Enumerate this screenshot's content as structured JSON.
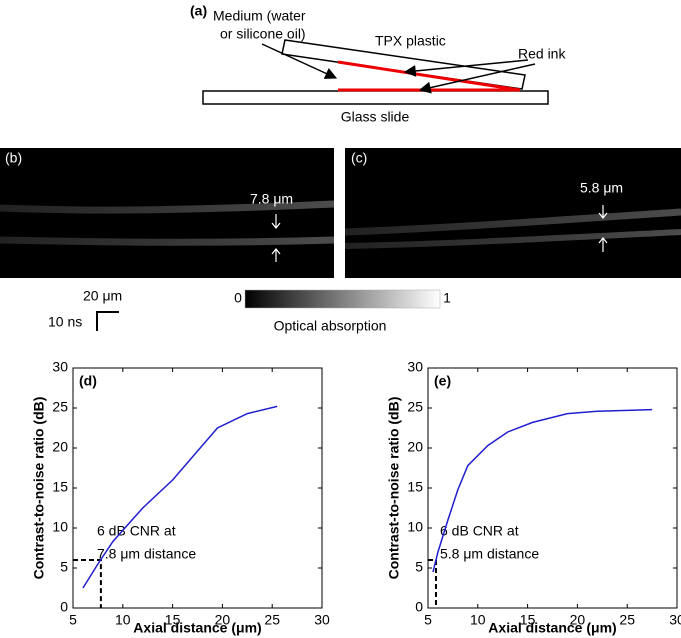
{
  "diagram": {
    "label": "(a)",
    "medium": [
      "Medium (water",
      "or silicone oil)"
    ],
    "plastic": "TPX plastic",
    "ink": "Red ink",
    "slide": "Glass slide"
  },
  "images": [
    {
      "label": "(b)",
      "annotation": "7.8 μm"
    },
    {
      "label": "(c)",
      "annotation": "5.8 μm"
    }
  ],
  "scale_bar": {
    "horizontal": "20 μm",
    "vertical": "10 ns"
  },
  "colorbar": {
    "label": "Optical absorption",
    "ticks": [
      0,
      1
    ]
  },
  "chart_data": [
    {
      "type": "line",
      "panel": "(d)",
      "xlabel": "Axial distance (μm)",
      "ylabel": "Contrast-to-noise ratio (dB)",
      "xlim": [
        5,
        30
      ],
      "ylim": [
        0,
        30
      ],
      "xticks": [
        5,
        10,
        15,
        20,
        25,
        30
      ],
      "yticks": [
        0,
        5,
        10,
        15,
        20,
        25,
        30
      ],
      "annotation": [
        "6 dB CNR at",
        "7.8 μm distance"
      ],
      "guide": {
        "x": 7.8,
        "y": 6
      },
      "series": [
        {
          "color": "#1f1fd0",
          "x": [
            6,
            7.5,
            9,
            12,
            15,
            19.5,
            22.5,
            25.5
          ],
          "values": [
            2.5,
            5.5,
            8.3,
            12.5,
            16,
            22.5,
            24.3,
            25.2
          ]
        }
      ]
    },
    {
      "type": "line",
      "panel": "(e)",
      "xlabel": "Axial distance (μm)",
      "ylabel": "Contrast-to-noise ratio (dB)",
      "xlim": [
        5,
        30
      ],
      "ylim": [
        0,
        30
      ],
      "xticks": [
        5,
        10,
        15,
        20,
        25,
        30
      ],
      "yticks": [
        0,
        5,
        10,
        15,
        20,
        25,
        30
      ],
      "annotation": [
        "6 dB CNR at",
        "5.8 μm distance"
      ],
      "guide": {
        "x": 5.8,
        "y": 6
      },
      "series": [
        {
          "color": "#1f1fd0",
          "x": [
            5.5,
            6,
            7,
            8,
            9,
            11,
            13,
            15.5,
            19,
            22,
            27.5
          ],
          "values": [
            4.5,
            7,
            11,
            14.8,
            17.8,
            20.3,
            22,
            23.2,
            24.3,
            24.6,
            24.8
          ]
        }
      ]
    }
  ]
}
